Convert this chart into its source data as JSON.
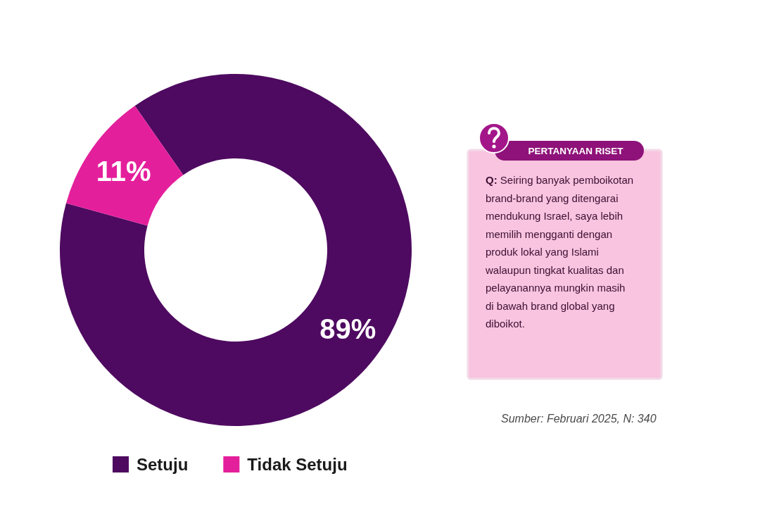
{
  "chart_data": {
    "type": "donut",
    "categories": [
      "Setuju",
      "Tidak Setuju"
    ],
    "values": [
      89,
      11
    ],
    "colors": [
      "#4e0a60",
      "#e41f9c"
    ],
    "value_labels": [
      "89%",
      "11%"
    ],
    "legend": "bottom",
    "annotations": [
      "PERTANYAAN RISET",
      "Q: Seiring banyak pemboikotan brand-brand yang ditengarai mendukung Israel, saya lebih memilih mengganti dengan produk lokal yang Islami walaupun tingkat kualitas dan pelayanannya mungkin masih di bawah brand global yang diboikot.",
      "Sumber: Februari 2025, N: 340"
    ]
  }
}
